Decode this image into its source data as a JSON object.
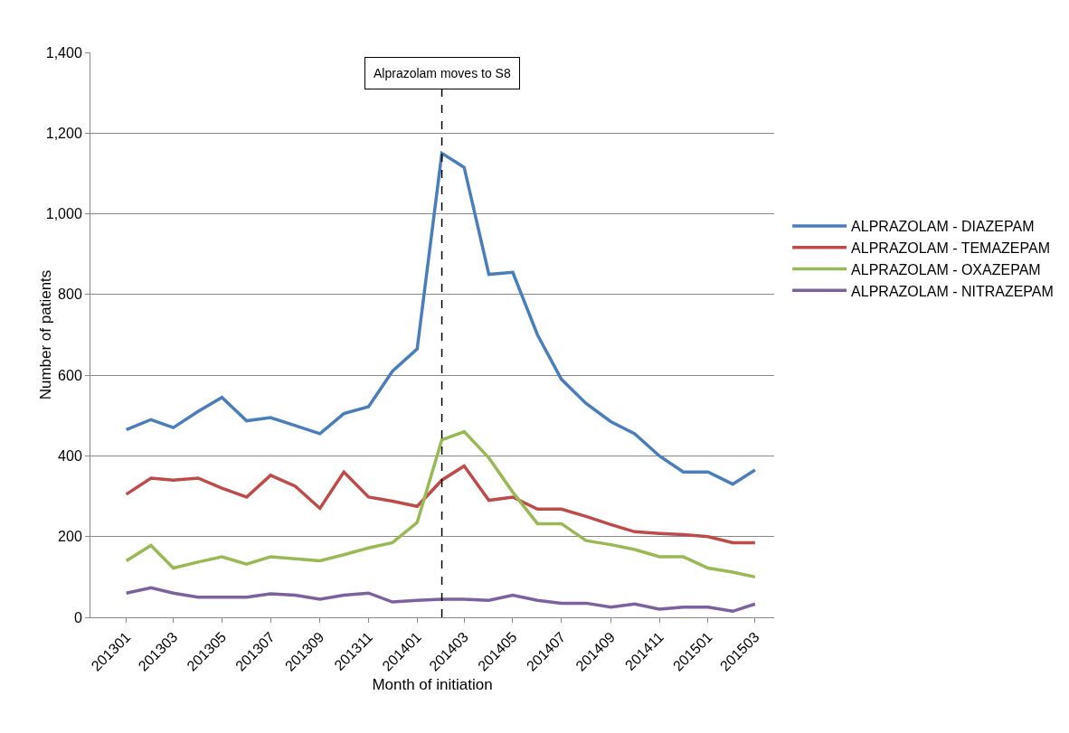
{
  "chart_data": {
    "type": "line",
    "xlabel": "Month of initiation",
    "ylabel": "Number of patients",
    "x": [
      "2013-01",
      "2013-02",
      "2013-03",
      "2013-04",
      "2013-05",
      "2013-06",
      "2013-07",
      "2013-08",
      "2013-09",
      "2013-10",
      "2013-11",
      "2013-12",
      "2014-01",
      "2014-02",
      "2014-03",
      "2014-04",
      "2014-05",
      "2014-06",
      "2014-07",
      "2014-08",
      "2014-09",
      "2014-10",
      "2014-11",
      "2014-12",
      "2015-01",
      "2015-02",
      "2015-03"
    ],
    "series": [
      {
        "name": "ALPRAZOLAM - DIAZEPAM",
        "color": "#4a7ebb",
        "values": [
          465,
          490,
          470,
          510,
          545,
          487,
          495,
          475,
          455,
          505,
          522,
          610,
          665,
          1150,
          1115,
          850,
          855,
          700,
          590,
          530,
          485,
          455,
          400,
          360,
          360,
          330,
          365
        ]
      },
      {
        "name": "ALPRAZOLAM - TEMAZEPAM",
        "color": "#be4b48",
        "values": [
          305,
          345,
          340,
          345,
          320,
          298,
          352,
          325,
          270,
          360,
          298,
          288,
          275,
          340,
          375,
          290,
          298,
          268,
          268,
          250,
          230,
          212,
          208,
          205,
          200,
          185,
          185
        ]
      },
      {
        "name": "ALPRAZOLAM - OXAZEPAM",
        "color": "#98b954",
        "values": [
          140,
          178,
          122,
          137,
          150,
          132,
          150,
          145,
          140,
          155,
          172,
          185,
          235,
          440,
          460,
          395,
          310,
          232,
          232,
          190,
          180,
          168,
          150,
          150,
          122,
          112,
          100
        ]
      },
      {
        "name": "ALPRAZOLAM - NITRAZEPAM",
        "color": "#7d60a0",
        "values": [
          60,
          73,
          60,
          50,
          50,
          50,
          58,
          55,
          45,
          55,
          60,
          38,
          42,
          45,
          45,
          42,
          55,
          42,
          35,
          35,
          25,
          33,
          20,
          25,
          25,
          15,
          33
        ]
      }
    ],
    "xlim": [
      "2012-11-17",
      "2015-03-25"
    ],
    "xticks": [
      {
        "value": "2013-01",
        "label": "201301"
      },
      {
        "value": "2013-03",
        "label": "201303"
      },
      {
        "value": "2013-05",
        "label": "201305"
      },
      {
        "value": "2013-07",
        "label": "201307"
      },
      {
        "value": "2013-09",
        "label": "201309"
      },
      {
        "value": "2013-11",
        "label": "201311"
      },
      {
        "value": "2014-01",
        "label": "201401"
      },
      {
        "value": "2014-03",
        "label": "201403"
      },
      {
        "value": "2014-05",
        "label": "201405"
      },
      {
        "value": "2014-07",
        "label": "201407"
      },
      {
        "value": "2014-09",
        "label": "201409"
      },
      {
        "value": "2014-11",
        "label": "201411"
      },
      {
        "value": "2015-01",
        "label": "201501"
      },
      {
        "value": "2015-03",
        "label": "201503"
      }
    ],
    "ylim": [
      0,
      1400
    ],
    "yticks": [
      0,
      200,
      400,
      600,
      800,
      {
        "value": 1000,
        "label": "1,000"
      },
      {
        "value": 1200,
        "label": "1,200"
      },
      {
        "value": 1400,
        "label": "1,400"
      }
    ],
    "ref_lines": [
      {
        "axis": "x",
        "value": "2014-02",
        "label": "Alprazolam moves to S8",
        "color": "#000000",
        "line_style": "dashed"
      }
    ],
    "grid": "y",
    "legend": "right",
    "marker": "none",
    "line_style": "solid"
  }
}
